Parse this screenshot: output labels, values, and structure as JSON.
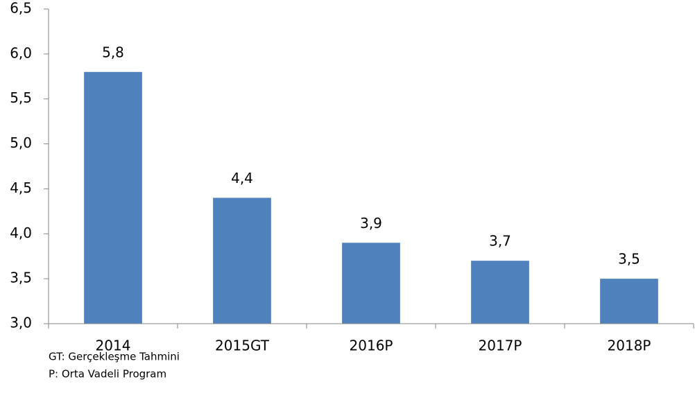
{
  "chart_data": {
    "type": "bar",
    "categories": [
      "2014",
      "2015GT",
      "2016P",
      "2017P",
      "2018P"
    ],
    "values": [
      5.8,
      4.4,
      3.9,
      3.7,
      3.5
    ],
    "value_labels": [
      "5,8",
      "4,4",
      "3,9",
      "3,7",
      "3,5"
    ],
    "color": "#4f81bd",
    "ylim": [
      3.0,
      6.5
    ],
    "yticks": [
      {
        "value": 3.0,
        "label": "3,0"
      },
      {
        "value": 3.5,
        "label": "3,5"
      },
      {
        "value": 4.0,
        "label": "4,0"
      },
      {
        "value": 4.5,
        "label": "4,5"
      },
      {
        "value": 5.0,
        "label": "5,0"
      },
      {
        "value": 5.5,
        "label": "5,5"
      },
      {
        "value": 6.0,
        "label": "6,0"
      },
      {
        "value": 6.5,
        "label": "6,5"
      }
    ],
    "grid": false,
    "notes": [
      "GT: Gerçekleşme Tahmini",
      "P: Orta Vadeli Program"
    ]
  }
}
